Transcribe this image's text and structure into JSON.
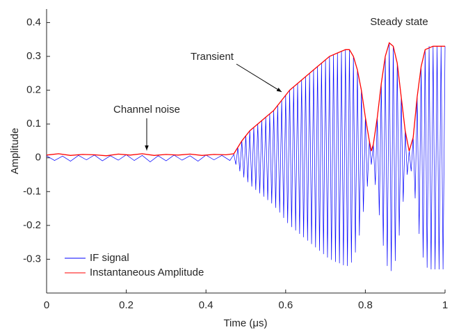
{
  "chart_data": {
    "type": "line",
    "xlabel": "Time (μs)",
    "ylabel": "Amplitude",
    "xlim": [
      0,
      1
    ],
    "xticks": [
      0,
      0.2,
      0.4,
      0.6,
      0.8,
      1
    ],
    "ylim": [
      -0.4,
      0.44
    ],
    "yticks": [
      -0.3,
      -0.2,
      -0.1,
      0,
      0.1,
      0.2,
      0.3,
      0.4
    ],
    "legend": "lower left",
    "annotations": [
      "Channel noise",
      "Transient",
      "Steady state"
    ],
    "series": [
      {
        "name": "IF signal",
        "color": "#0000ff",
        "x": [
          0,
          0.02,
          0.04,
          0.06,
          0.08,
          0.1,
          0.12,
          0.14,
          0.16,
          0.18,
          0.2,
          0.22,
          0.24,
          0.26,
          0.28,
          0.3,
          0.32,
          0.34,
          0.36,
          0.38,
          0.4,
          0.42,
          0.44,
          0.46,
          0.47,
          0.475,
          0.48,
          0.485,
          0.49,
          0.495,
          0.5,
          0.505,
          0.51,
          0.515,
          0.52,
          0.525,
          0.53,
          0.535,
          0.54,
          0.545,
          0.55,
          0.555,
          0.56,
          0.565,
          0.57,
          0.575,
          0.58,
          0.585,
          0.59,
          0.595,
          0.6,
          0.605,
          0.61,
          0.615,
          0.62,
          0.625,
          0.63,
          0.635,
          0.64,
          0.645,
          0.65,
          0.655,
          0.66,
          0.665,
          0.67,
          0.675,
          0.68,
          0.685,
          0.69,
          0.695,
          0.7,
          0.705,
          0.71,
          0.715,
          0.72,
          0.725,
          0.73,
          0.735,
          0.74,
          0.745,
          0.75,
          0.755,
          0.76,
          0.765,
          0.77,
          0.775,
          0.78,
          0.785,
          0.79,
          0.795,
          0.8,
          0.805,
          0.81,
          0.815,
          0.82,
          0.825,
          0.83,
          0.835,
          0.84,
          0.845,
          0.85,
          0.855,
          0.86,
          0.865,
          0.87,
          0.875,
          0.88,
          0.885,
          0.89,
          0.895,
          0.9,
          0.905,
          0.91,
          0.915,
          0.92,
          0.925,
          0.93,
          0.935,
          0.94,
          0.945,
          0.95,
          0.955,
          0.96,
          0.965,
          0.97,
          0.975,
          0.98,
          0.985,
          0.99,
          0.995,
          1
        ],
        "values": [
          0.006,
          -0.008,
          0.005,
          -0.01,
          0.007,
          -0.006,
          0.008,
          -0.009,
          0.006,
          -0.007,
          0.009,
          -0.008,
          0.007,
          -0.012,
          0.006,
          -0.009,
          0.008,
          -0.007,
          0.006,
          -0.01,
          0.008,
          -0.006,
          0.007,
          -0.008,
          0.01,
          -0.02,
          0.03,
          -0.04,
          0.05,
          -0.058,
          0.065,
          -0.072,
          0.08,
          -0.085,
          0.09,
          -0.095,
          0.1,
          -0.105,
          0.11,
          -0.115,
          0.12,
          -0.125,
          0.13,
          -0.135,
          0.14,
          -0.148,
          0.155,
          -0.162,
          0.17,
          -0.178,
          0.185,
          -0.193,
          0.2,
          -0.205,
          0.21,
          -0.215,
          0.22,
          -0.225,
          0.23,
          -0.235,
          0.24,
          -0.245,
          0.25,
          -0.255,
          0.26,
          -0.265,
          0.27,
          -0.275,
          0.28,
          -0.285,
          0.29,
          -0.295,
          0.3,
          -0.302,
          0.305,
          -0.308,
          0.31,
          -0.312,
          0.315,
          -0.318,
          0.32,
          -0.32,
          0.32,
          -0.31,
          0.3,
          -0.28,
          0.26,
          -0.23,
          0.2,
          -0.16,
          0.12,
          -0.085,
          0.05,
          -0.02,
          0.04,
          -0.08,
          0.12,
          -0.17,
          0.22,
          -0.26,
          0.3,
          -0.32,
          0.34,
          -0.335,
          0.33,
          -0.305,
          0.28,
          -0.23,
          0.18,
          -0.13,
          0.08,
          -0.05,
          0.02,
          -0.04,
          0.06,
          -0.12,
          0.18,
          -0.225,
          0.27,
          -0.295,
          0.32,
          -0.325,
          0.33,
          -0.33,
          0.33,
          -0.33,
          0.33,
          -0.33,
          0.33,
          -0.33,
          0.33
        ]
      },
      {
        "name": "Instantaneous Amplitude",
        "color": "#ff0000",
        "x": [
          0,
          0.03,
          0.06,
          0.09,
          0.12,
          0.15,
          0.18,
          0.21,
          0.24,
          0.27,
          0.3,
          0.33,
          0.36,
          0.39,
          0.42,
          0.45,
          0.47,
          0.49,
          0.51,
          0.53,
          0.55,
          0.57,
          0.59,
          0.61,
          0.63,
          0.65,
          0.67,
          0.69,
          0.71,
          0.73,
          0.75,
          0.76,
          0.77,
          0.78,
          0.79,
          0.8,
          0.81,
          0.815,
          0.82,
          0.83,
          0.84,
          0.85,
          0.86,
          0.87,
          0.88,
          0.89,
          0.9,
          0.91,
          0.92,
          0.93,
          0.94,
          0.95,
          0.97,
          1
        ],
        "values": [
          0.008,
          0.012,
          0.007,
          0.01,
          0.009,
          0.006,
          0.011,
          0.008,
          0.012,
          0.007,
          0.01,
          0.008,
          0.011,
          0.007,
          0.01,
          0.009,
          0.012,
          0.05,
          0.08,
          0.1,
          0.12,
          0.14,
          0.17,
          0.2,
          0.22,
          0.24,
          0.26,
          0.28,
          0.3,
          0.31,
          0.32,
          0.32,
          0.3,
          0.26,
          0.2,
          0.12,
          0.05,
          0.02,
          0.04,
          0.12,
          0.22,
          0.3,
          0.34,
          0.33,
          0.28,
          0.18,
          0.08,
          0.02,
          0.06,
          0.18,
          0.27,
          0.32,
          0.33,
          0.33
        ]
      }
    ]
  }
}
